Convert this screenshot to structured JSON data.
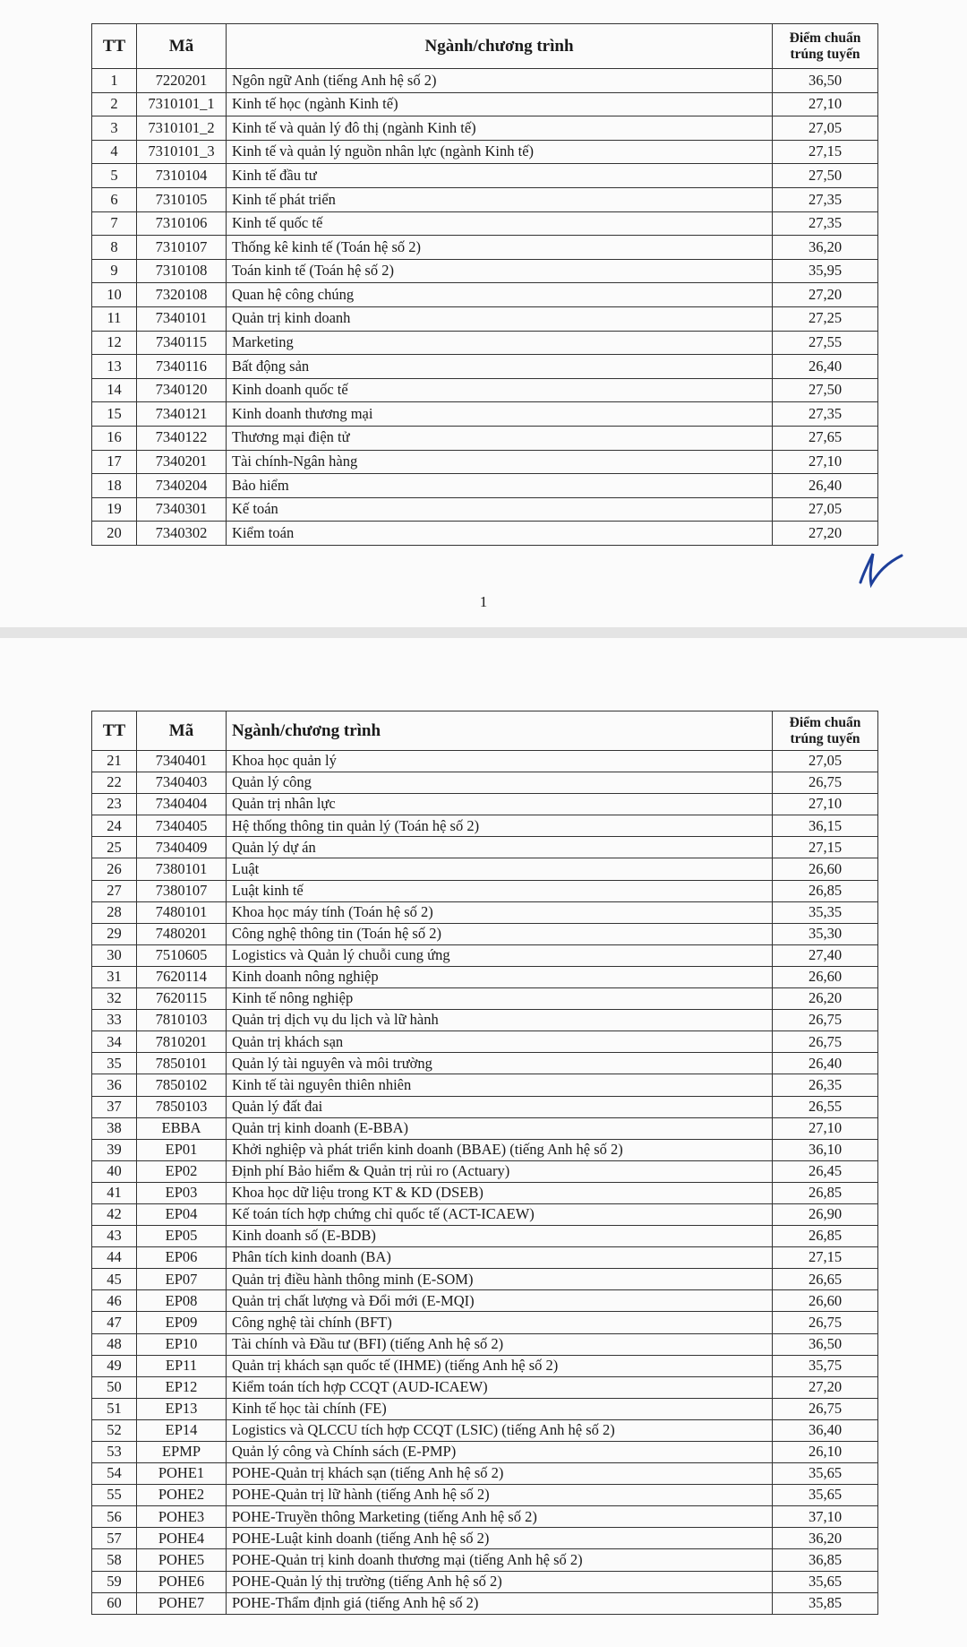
{
  "pages": [
    {
      "table": {
        "header": [
          "TT",
          "Mã",
          "Ngành/chương trình",
          "Điểm chuẩn trúng tuyến"
        ],
        "rows": [
          [
            "1",
            "7220201",
            "Ngôn ngữ Anh (tiếng Anh hệ số 2)",
            "36,50"
          ],
          [
            "2",
            "7310101_1",
            "Kinh tế học (ngành Kinh tế)",
            "27,10"
          ],
          [
            "3",
            "7310101_2",
            "Kinh tế và quản lý đô thị (ngành Kinh tế)",
            "27,05"
          ],
          [
            "4",
            "7310101_3",
            "Kinh tế và quản lý nguồn nhân lực (ngành Kinh tế)",
            "27,15"
          ],
          [
            "5",
            "7310104",
            "Kinh tế đầu tư",
            "27,50"
          ],
          [
            "6",
            "7310105",
            "Kinh tế phát triển",
            "27,35"
          ],
          [
            "7",
            "7310106",
            "Kinh tế quốc tế",
            "27,35"
          ],
          [
            "8",
            "7310107",
            "Thống kê kinh tế (Toán hệ số 2)",
            "36,20"
          ],
          [
            "9",
            "7310108",
            "Toán kinh tế (Toán hệ số 2)",
            "35,95"
          ],
          [
            "10",
            "7320108",
            "Quan hệ công chúng",
            "27,20"
          ],
          [
            "11",
            "7340101",
            "Quản trị kinh doanh",
            "27,25"
          ],
          [
            "12",
            "7340115",
            "Marketing",
            "27,55"
          ],
          [
            "13",
            "7340116",
            "Bất động sản",
            "26,40"
          ],
          [
            "14",
            "7340120",
            "Kinh doanh quốc tế",
            "27,50"
          ],
          [
            "15",
            "7340121",
            "Kinh doanh thương mại",
            "27,35"
          ],
          [
            "16",
            "7340122",
            "Thương mại điện tử",
            "27,65"
          ],
          [
            "17",
            "7340201",
            "Tài chính-Ngân hàng",
            "27,10"
          ],
          [
            "18",
            "7340204",
            "Bảo hiểm",
            "26,40"
          ],
          [
            "19",
            "7340301",
            "Kế toán",
            "27,05"
          ],
          [
            "20",
            "7340302",
            "Kiểm toán",
            "27,20"
          ]
        ]
      },
      "page_number": "1"
    },
    {
      "table": {
        "header": [
          "TT",
          "Mã",
          "Ngành/chương trình",
          "Điểm chuẩn trúng tuyến"
        ],
        "rows": [
          [
            "21",
            "7340401",
            "Khoa học quản lý",
            "27,05"
          ],
          [
            "22",
            "7340403",
            "Quản lý công",
            "26,75"
          ],
          [
            "23",
            "7340404",
            "Quản trị nhân lực",
            "27,10"
          ],
          [
            "24",
            "7340405",
            "Hệ thống thông tin quản lý (Toán hệ số 2)",
            "36,15"
          ],
          [
            "25",
            "7340409",
            "Quản lý dự án",
            "27,15"
          ],
          [
            "26",
            "7380101",
            "Luật",
            "26,60"
          ],
          [
            "27",
            "7380107",
            "Luật kinh tế",
            "26,85"
          ],
          [
            "28",
            "7480101",
            "Khoa học máy tính (Toán hệ số 2)",
            "35,35"
          ],
          [
            "29",
            "7480201",
            "Công nghệ thông tin (Toán hệ số 2)",
            "35,30"
          ],
          [
            "30",
            "7510605",
            "Logistics và Quản lý chuỗi cung ứng",
            "27,40"
          ],
          [
            "31",
            "7620114",
            "Kinh doanh nông nghiệp",
            "26,60"
          ],
          [
            "32",
            "7620115",
            "Kinh tế nông nghiệp",
            "26,20"
          ],
          [
            "33",
            "7810103",
            "Quản trị dịch vụ du lịch và lữ hành",
            "26,75"
          ],
          [
            "34",
            "7810201",
            "Quản trị khách sạn",
            "26,75"
          ],
          [
            "35",
            "7850101",
            "Quản lý tài nguyên và môi trường",
            "26,40"
          ],
          [
            "36",
            "7850102",
            "Kinh tế tài nguyên thiên nhiên",
            "26,35"
          ],
          [
            "37",
            "7850103",
            "Quản lý đất đai",
            "26,55"
          ],
          [
            "38",
            "EBBA",
            "Quản trị kinh doanh (E-BBA)",
            "27,10"
          ],
          [
            "39",
            "EP01",
            "Khởi nghiệp và phát triển kinh doanh (BBAE) (tiếng Anh hệ số 2)",
            "36,10"
          ],
          [
            "40",
            "EP02",
            "Định phí Bảo hiểm & Quản trị rủi ro (Actuary)",
            "26,45"
          ],
          [
            "41",
            "EP03",
            "Khoa học dữ liệu trong KT & KD (DSEB)",
            "26,85"
          ],
          [
            "42",
            "EP04",
            "Kế toán tích hợp chứng chỉ quốc tế (ACT-ICAEW)",
            "26,90"
          ],
          [
            "43",
            "EP05",
            "Kinh doanh số (E-BDB)",
            "26,85"
          ],
          [
            "44",
            "EP06",
            "Phân tích kinh doanh (BA)",
            "27,15"
          ],
          [
            "45",
            "EP07",
            "Quản trị điều hành thông minh (E-SOM)",
            "26,65"
          ],
          [
            "46",
            "EP08",
            "Quản trị chất lượng và Đổi mới (E-MQI)",
            "26,60"
          ],
          [
            "47",
            "EP09",
            "Công nghệ tài chính (BFT)",
            "26,75"
          ],
          [
            "48",
            "EP10",
            "Tài chính và Đầu tư (BFI) (tiếng Anh hệ số 2)",
            "36,50"
          ],
          [
            "49",
            "EP11",
            "Quản trị khách sạn quốc tế (IHME) (tiếng Anh hệ số 2)",
            "35,75"
          ],
          [
            "50",
            "EP12",
            "Kiểm toán tích hợp CCQT (AUD-ICAEW)",
            "27,20"
          ],
          [
            "51",
            "EP13",
            "Kinh tế học tài chính (FE)",
            "26,75"
          ],
          [
            "52",
            "EP14",
            "Logistics và QLCCU tích hợp CCQT (LSIC) (tiếng Anh hệ số 2)",
            "36,40"
          ],
          [
            "53",
            "EPMP",
            "Quản lý công và Chính sách (E-PMP)",
            "26,10"
          ],
          [
            "54",
            "POHE1",
            "POHE-Quản trị khách sạn (tiếng Anh hệ số 2)",
            "35,65"
          ],
          [
            "55",
            "POHE2",
            "POHE-Quản trị lữ hành (tiếng Anh hệ số 2)",
            "35,65"
          ],
          [
            "56",
            "POHE3",
            "POHE-Truyền thông Marketing (tiếng Anh hệ số 2)",
            "37,10"
          ],
          [
            "57",
            "POHE4",
            "POHE-Luật kinh doanh (tiếng Anh hệ số 2)",
            "36,20"
          ],
          [
            "58",
            "POHE5",
            "POHE-Quản trị kinh doanh thương mại (tiếng Anh hệ số 2)",
            "36,85"
          ],
          [
            "59",
            "POHE6",
            "POHE-Quản lý thị trường (tiếng Anh hệ số 2)",
            "35,65"
          ],
          [
            "60",
            "POHE7",
            "POHE-Thẩm định giá (tiếng Anh hệ số 2)",
            "35,85"
          ]
        ]
      }
    }
  ]
}
